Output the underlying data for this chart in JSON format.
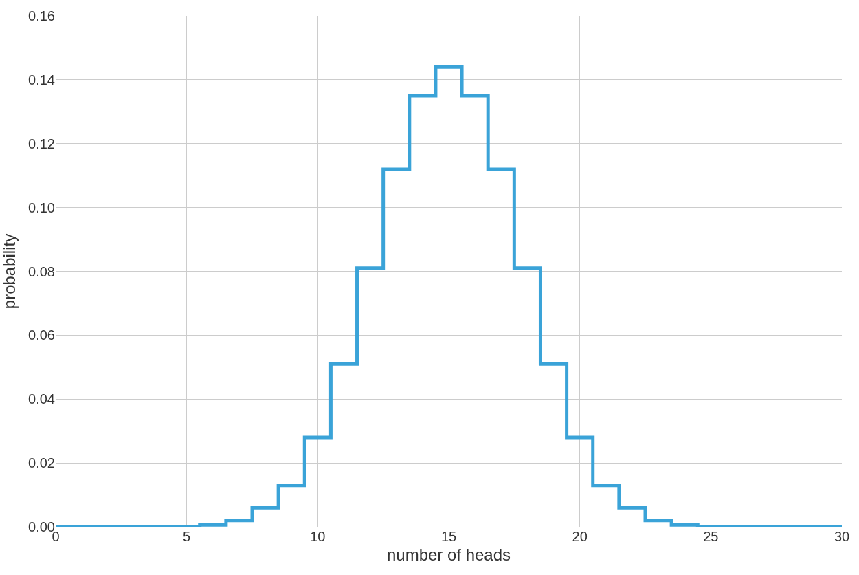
{
  "chart_data": {
    "type": "step",
    "xlabel": "number of heads",
    "ylabel": "probability",
    "x": [
      0,
      1,
      2,
      3,
      4,
      5,
      6,
      7,
      8,
      9,
      10,
      11,
      12,
      13,
      14,
      15,
      16,
      17,
      18,
      19,
      20,
      21,
      22,
      23,
      24,
      25,
      26,
      27,
      28,
      29,
      30
    ],
    "series": [
      {
        "color": "#3aa3d8",
        "values": [
          0,
          0,
          0,
          0,
          0,
          0.0001,
          0.0006,
          0.002,
          0.006,
          0.013,
          0.028,
          0.051,
          0.081,
          0.112,
          0.135,
          0.144,
          0.135,
          0.112,
          0.081,
          0.051,
          0.028,
          0.013,
          0.006,
          0.002,
          0.0006,
          0.0001,
          0,
          0,
          0,
          0,
          0
        ]
      }
    ],
    "xlim": [
      0,
      30
    ],
    "xticks": [
      0,
      5,
      10,
      15,
      20,
      25,
      30
    ],
    "ylim": [
      0,
      0.16
    ],
    "yticks": [
      {
        "value": 0,
        "label": "0.00"
      },
      {
        "value": 0.02,
        "label": "0.02"
      },
      {
        "value": 0.04,
        "label": "0.04"
      },
      {
        "value": 0.06,
        "label": "0.06"
      },
      {
        "value": 0.08,
        "label": "0.08"
      },
      {
        "value": 0.1,
        "label": "0.10"
      },
      {
        "value": 0.12,
        "label": "0.12"
      },
      {
        "value": 0.14,
        "label": "0.14"
      },
      {
        "value": 0.16,
        "label": "0.16"
      }
    ],
    "grid": true
  }
}
